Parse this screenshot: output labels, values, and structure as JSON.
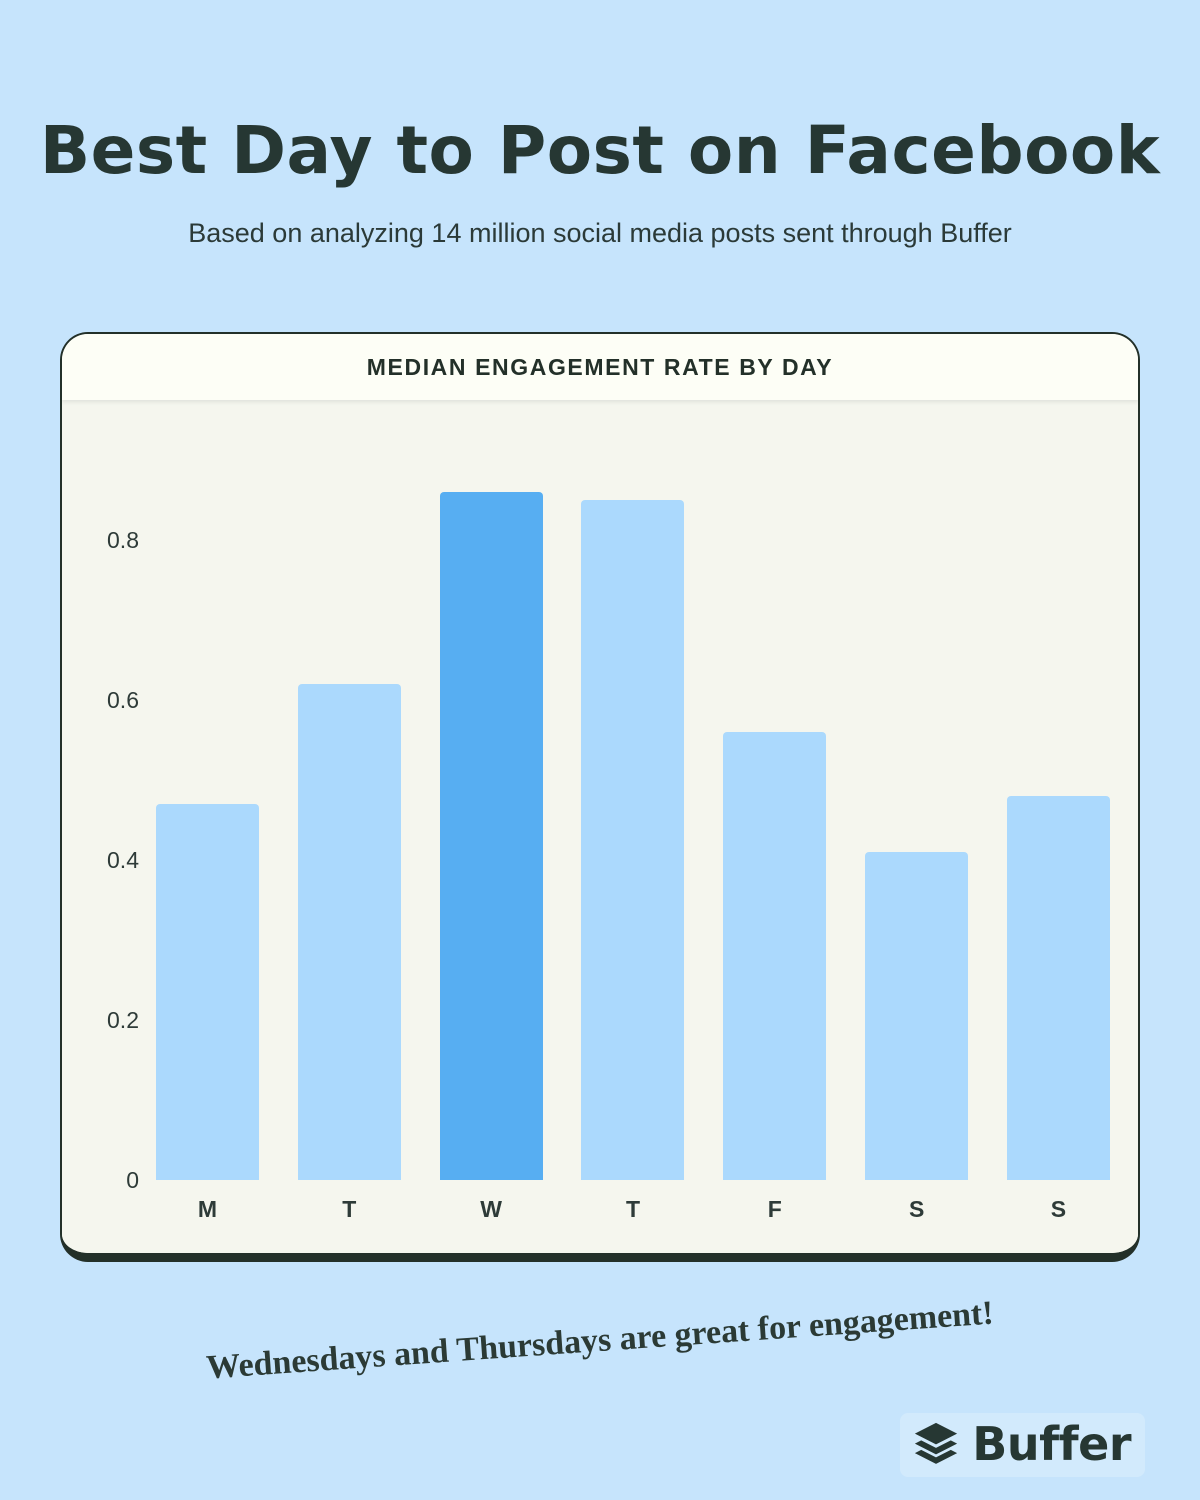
{
  "page": {
    "title": "Best Day to Post on Facebook",
    "subtitle": "Based on analyzing 14 million social media posts sent through Buffer",
    "annotation": "Wednesdays and Thursdays are great for engagement!",
    "brand": {
      "name": "Buffer",
      "icon": "buffer-layers-icon"
    },
    "colors": {
      "background": "#c6e4fc",
      "card_header_bg": "#fdfef6",
      "card_body_bg": "#f5f6ee",
      "card_border": "#233029",
      "heading_text": "#263733",
      "bar_default": "#abd9fd",
      "bar_highlight": "#57aef2"
    }
  },
  "chart_data": {
    "type": "bar",
    "title": "MEDIAN ENGAGEMENT RATE BY DAY",
    "categories": [
      "M",
      "T",
      "W",
      "T",
      "F",
      "S",
      "S"
    ],
    "day_names": [
      "monday",
      "tuesday",
      "wednesday",
      "thursday",
      "friday",
      "saturday",
      "sunday"
    ],
    "values": [
      0.47,
      0.62,
      0.86,
      0.85,
      0.56,
      0.41,
      0.48
    ],
    "highlight_index": 2,
    "bar_color": "#abd9fd",
    "highlight_color": "#57aef2",
    "yticks": [
      0,
      0.2,
      0.4,
      0.6,
      0.8
    ],
    "ylim": [
      0,
      0.9
    ],
    "xlabel": "",
    "ylabel": "",
    "grid": false,
    "legend": false
  }
}
